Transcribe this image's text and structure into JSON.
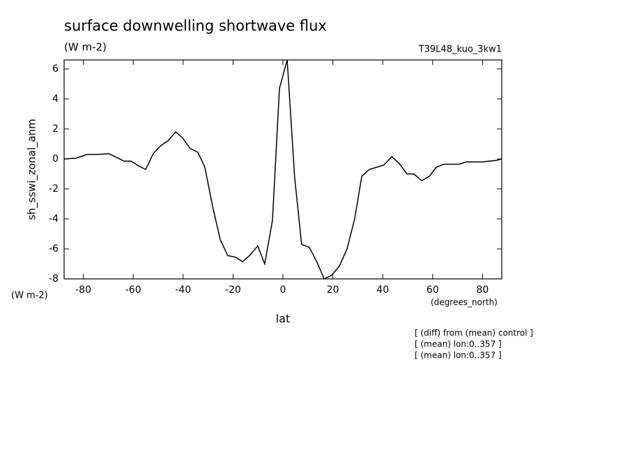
{
  "chart_data": {
    "type": "line",
    "title": "surface downwelling shortwave flux",
    "subtitle": "(W m-2)",
    "dataset": "T39L48_kuo_3kw1",
    "y_label": "sh_sswi_zonal_anm",
    "y_units": "(W m-2)",
    "x_units": "(degrees_north)",
    "x_label": "lat",
    "notes": [
      "[ (diff) from (mean) control ]",
      "[ (mean) lon:0..357 ]",
      "[ (mean) lon:0..357 ]"
    ],
    "color": "#000000",
    "x": [
      -87.7,
      -82.9,
      -78.5,
      -74,
      -69.8,
      -65.4,
      -63.7,
      -60.9,
      -57.5,
      -55,
      -52,
      -48.9,
      -46.1,
      -43,
      -40.2,
      -37.2,
      -34.1,
      -31.3,
      -28.2,
      -25.1,
      -22.1,
      -19,
      -16.2,
      -13.1,
      -10.1,
      -7.3,
      -4.2,
      -1.4,
      1.7,
      4.7,
      7.5,
      10.6,
      13.7,
      16.5,
      19.6,
      22.6,
      25.7,
      28.8,
      31.6,
      34.6,
      37.7,
      40.5,
      43.6,
      46.6,
      49.7,
      52.5,
      55.6,
      58.7,
      61.5,
      64.5,
      67.6,
      70.7,
      73.5,
      76.5,
      79.6,
      82.7,
      85.5,
      87.7
    ],
    "values": [
      0,
      0.05,
      0.3,
      0.3,
      0.35,
      0,
      -0.15,
      -0.15,
      -0.5,
      -0.7,
      0.35,
      0.9,
      1.2,
      1.8,
      1.4,
      0.7,
      0.45,
      -0.55,
      -3.15,
      -5.4,
      -6.45,
      -6.55,
      -6.85,
      -6.4,
      -5.8,
      -7.0,
      -4.1,
      4.7,
      6.6,
      -1.25,
      -5.7,
      -5.9,
      -6.9,
      -8,
      -7.75,
      -7.15,
      -6.0,
      -3.95,
      -1.15,
      -0.7,
      -0.55,
      -0.4,
      0.15,
      -0.3,
      -1.0,
      -1.0,
      -1.45,
      -1.15,
      -0.55,
      -0.35,
      -0.35,
      -0.35,
      -0.2,
      -0.2,
      -0.2,
      -0.15,
      -0.1,
      0
    ],
    "xlim": [
      -87.7,
      87.7
    ],
    "xticks": [
      -80,
      -60,
      -40,
      -20,
      0,
      20,
      40,
      60,
      80
    ],
    "ylim": [
      -8,
      6.6
    ],
    "yticks": [
      -8,
      -6,
      -4,
      -2,
      0,
      2,
      4,
      6
    ],
    "grid": false
  }
}
